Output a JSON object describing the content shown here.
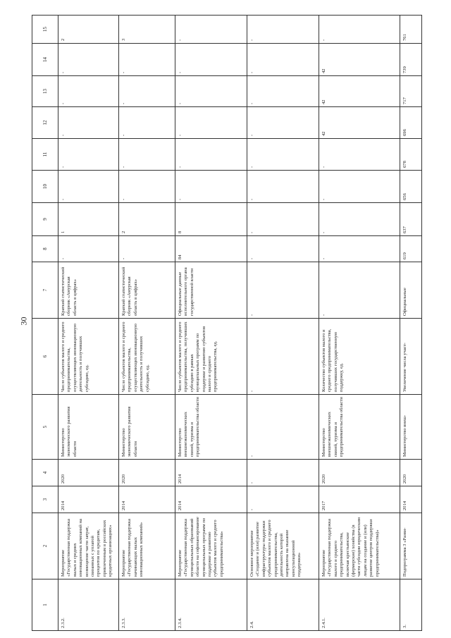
{
  "page_number": "30",
  "header": [
    "1",
    "2",
    "3",
    "4",
    "5",
    "6",
    "7",
    "8",
    "9",
    "10",
    "11",
    "12",
    "13",
    "14",
    "15"
  ],
  "rows": [
    {
      "cells": [
        "2.3.2.",
        "Мероприятие «Государственная поддержка малых и средних инновационных компаний на возмещение части затрат, связанных с уплатой процентов по кредитам, привлеченным в российских кредитных организациях»",
        "2014",
        "2020",
        "Министерство экономического развития области",
        "Число субъектов малого и среднего предпринимательства, осуществляющих инновационную деятельность и получивших субсидию, ед.",
        "Краткий статистический сборник «Амурская область в цифрах»",
        "-",
        "1",
        "-",
        "-",
        "-",
        "-",
        "-",
        "2"
      ]
    },
    {
      "cells": [
        "2.3.3.",
        "Мероприятие «Государственная поддержка начинающих малых инновационных компаний»",
        "2014",
        "2020",
        "Министерство экономического развития области",
        "Число субъектов малого и среднего предпринимательства, осуществляющих инновационную деятельность и получивших субсидию, ед.",
        "Краткий статистический сборник «Амурская область в цифрах»",
        "-",
        "2",
        "-",
        "-",
        "-",
        "-",
        "-",
        "3"
      ]
    },
    {
      "cells": [
        "2.3.4.",
        "Мероприятие «Государственная поддержка муниципальных образований области на софинансирование муниципальных программ по поддержке и развитию субъектов малого и среднего предпринимательства»",
        "2014",
        "2014",
        "Министерство внешнеэкономических связей, туризма и предпринимательства области",
        "Число субъектов малого и среднего предпринимательства, получивших субсидию в рамках муниципальных программ по поддержке и развитию субъектов малого и среднего предпринимательства, ед.",
        "Официальные данные исполнительного органа государственной власти",
        "84",
        "8",
        "-",
        "-",
        "-",
        "-",
        "-",
        "-"
      ]
    },
    {
      "cells": [
        "2.4.",
        "Основное мероприятие «Создание и (или) развитие инфраструктуры поддержки субъектов малого и среднего предпринимательства, деятельность которой направлена на оказание консультационной поддержки»",
        "-",
        "-",
        "-",
        "-",
        "-",
        "-",
        "-",
        "-",
        "-",
        "-",
        "-",
        "-",
        "-"
      ]
    },
    {
      "cells": [
        "2.4.1.",
        "Мероприятие «Государственная поддержка малого и среднего предпринимательства, включая крестьянские (фермерские) хозяйства (в части субсидии юридическим лицам на создание и (или) развитие центров поддержки предпринимательства)»",
        "2017",
        "2020",
        "Министерство внешнеэкономических связей, туризма и предпринимательства области",
        "Количество субъектов малого и среднего предпринимательства, получивших государственную поддержку, ед.",
        "-",
        "-",
        "-",
        "-",
        "-",
        "42",
        "42",
        "42",
        "-"
      ]
    },
    {
      "cells": [
        "3.",
        "Подпрограмма 3 «Разви-",
        "2014",
        "2020",
        "Министерство внеш-",
        "Увеличение числа участ-",
        "Официальные",
        "619",
        "637",
        "656",
        "678",
        "696",
        "717",
        "739",
        "761"
      ]
    }
  ]
}
